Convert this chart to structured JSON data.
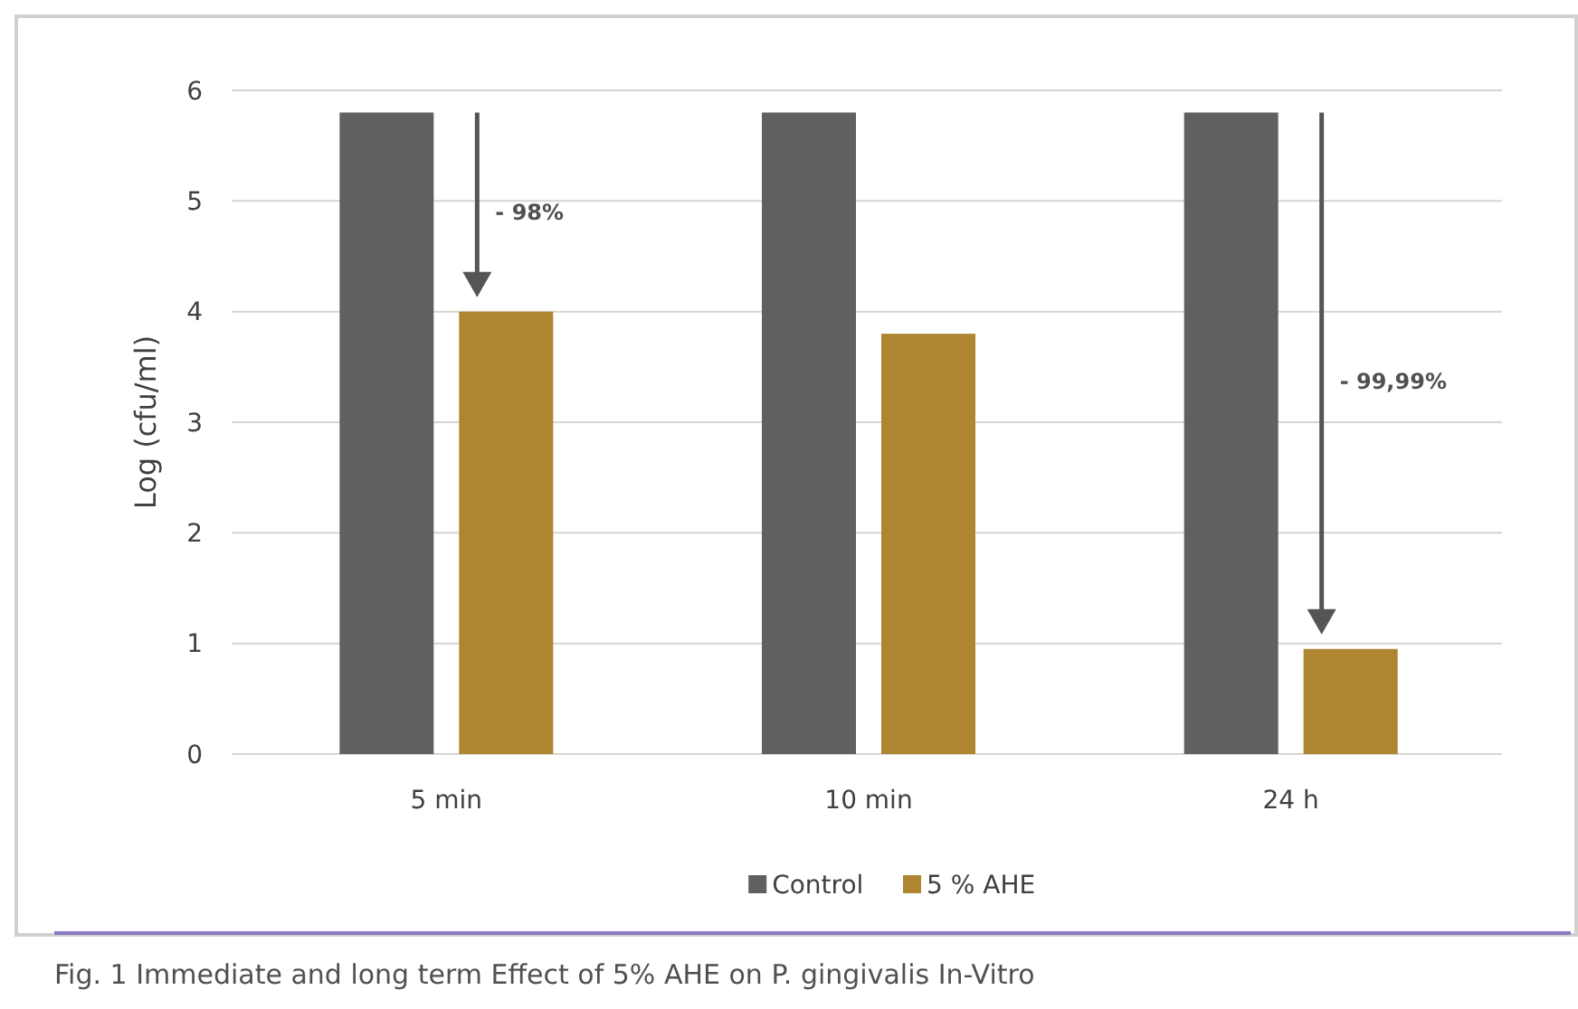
{
  "chart_data": {
    "type": "bar",
    "ylabel": "Log (cfu/ml)",
    "categories": [
      "5 min",
      "10 min",
      "24 h"
    ],
    "series": [
      {
        "name": "Control",
        "color": "#606060",
        "values": [
          5.8,
          5.8,
          5.8
        ]
      },
      {
        "name": "5 % AHE",
        "color": "#ae8630",
        "values": [
          4.0,
          3.8,
          0.95
        ]
      }
    ],
    "ylim": [
      0,
      6
    ],
    "yticks": [
      0,
      1,
      2,
      3,
      4,
      5,
      6
    ],
    "grid": "y",
    "legend": "bottom",
    "annotations": [
      "- 98%",
      "- 99,99%",
      "Fig. 1   Immediate and long term Effect of 5% AHE on P. gingivalis In-Vitro"
    ]
  }
}
